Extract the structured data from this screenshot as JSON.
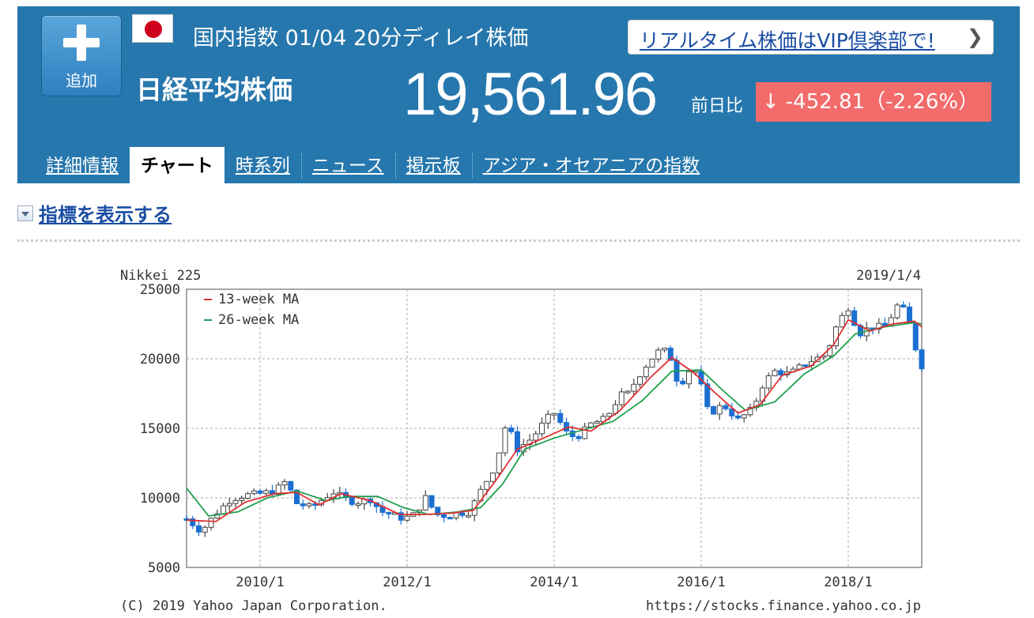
{
  "header": {
    "add_label": "追加",
    "meta": "国内指数 01/04 20分ディレイ株価",
    "index_name": "日経平均株価",
    "price": "19,561.96",
    "change_label": "前日比",
    "change_value": "-452.81（-2.26%）",
    "change_color": "#f36b6b",
    "vip_link": "リアルタイム株価はVIP倶楽部で!",
    "accent_color": "#2677ad"
  },
  "tabs": [
    {
      "label": "詳細情報",
      "active": false
    },
    {
      "label": "チャート",
      "active": true
    },
    {
      "label": "時系列",
      "active": false
    },
    {
      "label": "ニュース",
      "active": false
    },
    {
      "label": "掲示板",
      "active": false
    },
    {
      "label": "アジア・オセアニアの指数",
      "active": false
    }
  ],
  "indicator_toggle": "指標を表示する",
  "chart_data": {
    "type": "candlestick",
    "title": "Nikkei 225",
    "date": "2019/1/4",
    "ylim": [
      5000,
      25000
    ],
    "yticks": [
      "25000",
      "20000",
      "15000",
      "10000",
      "5000"
    ],
    "xticks": [
      "2010/1",
      "2012/1",
      "2014/1",
      "2016/1",
      "2018/1"
    ],
    "x_range": [
      "2009/1",
      "2019/1"
    ],
    "legend": [
      {
        "name": "13-week MA",
        "color": "#e03030"
      },
      {
        "name": "26-week MA",
        "color": "#20a050"
      }
    ],
    "series_close": [
      [
        2009.0,
        8500
      ],
      [
        2009.2,
        7600
      ],
      [
        2009.4,
        8900
      ],
      [
        2009.6,
        9900
      ],
      [
        2009.8,
        10200
      ],
      [
        2010.0,
        10300
      ],
      [
        2010.2,
        10500
      ],
      [
        2010.35,
        11200
      ],
      [
        2010.5,
        9600
      ],
      [
        2010.7,
        9300
      ],
      [
        2010.9,
        10100
      ],
      [
        2011.0,
        10400
      ],
      [
        2011.2,
        9800
      ],
      [
        2011.35,
        9700
      ],
      [
        2011.5,
        9900
      ],
      [
        2011.65,
        9000
      ],
      [
        2011.8,
        8800
      ],
      [
        2011.95,
        8500
      ],
      [
        2012.1,
        8800
      ],
      [
        2012.25,
        10000
      ],
      [
        2012.4,
        8800
      ],
      [
        2012.55,
        8700
      ],
      [
        2012.7,
        8900
      ],
      [
        2012.85,
        9000
      ],
      [
        2013.0,
        10500
      ],
      [
        2013.2,
        12300
      ],
      [
        2013.35,
        15400
      ],
      [
        2013.5,
        13500
      ],
      [
        2013.7,
        14300
      ],
      [
        2013.9,
        15700
      ],
      [
        2014.0,
        16100
      ],
      [
        2014.2,
        14400
      ],
      [
        2014.35,
        14500
      ],
      [
        2014.5,
        15300
      ],
      [
        2014.7,
        15700
      ],
      [
        2014.9,
        17400
      ],
      [
        2015.0,
        17500
      ],
      [
        2015.2,
        19200
      ],
      [
        2015.4,
        20500
      ],
      [
        2015.55,
        20600
      ],
      [
        2015.7,
        18000
      ],
      [
        2015.85,
        19300
      ],
      [
        2015.95,
        19000
      ],
      [
        2016.1,
        16000
      ],
      [
        2016.3,
        16700
      ],
      [
        2016.5,
        15600
      ],
      [
        2016.7,
        16400
      ],
      [
        2016.85,
        18300
      ],
      [
        2017.0,
        19100
      ],
      [
        2017.2,
        18900
      ],
      [
        2017.4,
        19600
      ],
      [
        2017.55,
        20000
      ],
      [
        2017.7,
        20300
      ],
      [
        2017.85,
        22500
      ],
      [
        2018.0,
        23700
      ],
      [
        2018.15,
        21800
      ],
      [
        2018.3,
        22300
      ],
      [
        2018.5,
        22300
      ],
      [
        2018.7,
        24100
      ],
      [
        2018.85,
        22300
      ],
      [
        2018.95,
        20000
      ],
      [
        2019.0,
        19500
      ]
    ],
    "ma13": [
      [
        2009.0,
        8400
      ],
      [
        2009.4,
        8300
      ],
      [
        2009.8,
        9700
      ],
      [
        2010.2,
        10300
      ],
      [
        2010.5,
        10400
      ],
      [
        2010.8,
        9500
      ],
      [
        2011.1,
        10300
      ],
      [
        2011.5,
        9800
      ],
      [
        2011.9,
        8800
      ],
      [
        2012.2,
        8800
      ],
      [
        2012.6,
        8900
      ],
      [
        2012.9,
        9100
      ],
      [
        2013.2,
        11200
      ],
      [
        2013.5,
        13500
      ],
      [
        2013.9,
        14400
      ],
      [
        2014.2,
        15100
      ],
      [
        2014.5,
        14800
      ],
      [
        2014.9,
        16300
      ],
      [
        2015.3,
        18600
      ],
      [
        2015.6,
        20100
      ],
      [
        2015.9,
        19000
      ],
      [
        2016.2,
        17500
      ],
      [
        2016.5,
        16100
      ],
      [
        2016.8,
        16700
      ],
      [
        2017.1,
        18800
      ],
      [
        2017.5,
        19500
      ],
      [
        2017.8,
        21000
      ],
      [
        2018.0,
        22800
      ],
      [
        2018.3,
        22000
      ],
      [
        2018.6,
        22500
      ],
      [
        2018.9,
        22700
      ],
      [
        2019.0,
        22300
      ]
    ],
    "ma26": [
      [
        2009.0,
        10700
      ],
      [
        2009.3,
        8700
      ],
      [
        2009.7,
        9000
      ],
      [
        2010.1,
        10000
      ],
      [
        2010.5,
        10500
      ],
      [
        2010.9,
        9800
      ],
      [
        2011.2,
        10100
      ],
      [
        2011.6,
        10100
      ],
      [
        2011.95,
        9300
      ],
      [
        2012.3,
        8800
      ],
      [
        2012.7,
        9000
      ],
      [
        2013.0,
        9300
      ],
      [
        2013.3,
        11000
      ],
      [
        2013.6,
        13500
      ],
      [
        2014.0,
        14300
      ],
      [
        2014.4,
        14900
      ],
      [
        2014.8,
        15500
      ],
      [
        2015.2,
        17000
      ],
      [
        2015.6,
        19100
      ],
      [
        2016.0,
        19200
      ],
      [
        2016.3,
        17700
      ],
      [
        2016.6,
        16300
      ],
      [
        2017.0,
        16900
      ],
      [
        2017.4,
        18900
      ],
      [
        2017.8,
        20200
      ],
      [
        2018.1,
        21800
      ],
      [
        2018.5,
        22300
      ],
      [
        2018.9,
        22600
      ],
      [
        2019.0,
        22500
      ]
    ],
    "footer_left": "(C) 2019 Yahoo Japan Corporation.",
    "footer_right": "https://stocks.finance.yahoo.co.jp"
  }
}
